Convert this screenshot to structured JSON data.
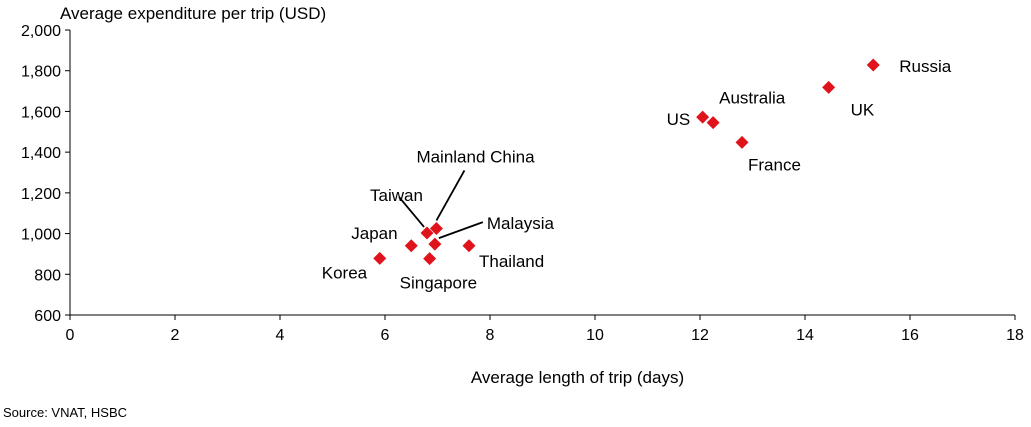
{
  "chart_data": {
    "type": "scatter",
    "title": "Average expenditure per trip (USD)",
    "xlabel": "Average length of trip (days)",
    "ylabel": "Average expenditure per trip (USD)",
    "xlim": [
      0,
      18
    ],
    "ylim": [
      600,
      2000
    ],
    "xticks": [
      "0",
      "2",
      "4",
      "6",
      "8",
      "10",
      "12",
      "14",
      "16",
      "18"
    ],
    "yticks": [
      "600",
      "800",
      "1,000",
      "1,200",
      "1,400",
      "1,600",
      "1,800",
      "2,000"
    ],
    "grid": false,
    "marker_color": "#e0121b",
    "points": [
      {
        "label": "Korea",
        "x": 5.9,
        "y": 878
      },
      {
        "label": "Japan",
        "x": 6.5,
        "y": 940
      },
      {
        "label": "Taiwan",
        "x": 6.8,
        "y": 1003
      },
      {
        "label": "Mainland China",
        "x": 6.98,
        "y": 1025
      },
      {
        "label": "Singapore",
        "x": 6.85,
        "y": 877
      },
      {
        "label": "Malaysia",
        "x": 6.95,
        "y": 948
      },
      {
        "label": "Thailand",
        "x": 7.6,
        "y": 940
      },
      {
        "label": "US",
        "x": 12.05,
        "y": 1572
      },
      {
        "label": "Australia",
        "x": 12.25,
        "y": 1545
      },
      {
        "label": "France",
        "x": 12.8,
        "y": 1448
      },
      {
        "label": "UK",
        "x": 14.45,
        "y": 1718
      },
      {
        "label": "Russia",
        "x": 15.3,
        "y": 1828
      }
    ]
  },
  "source": "Source: VNAT, HSBC"
}
